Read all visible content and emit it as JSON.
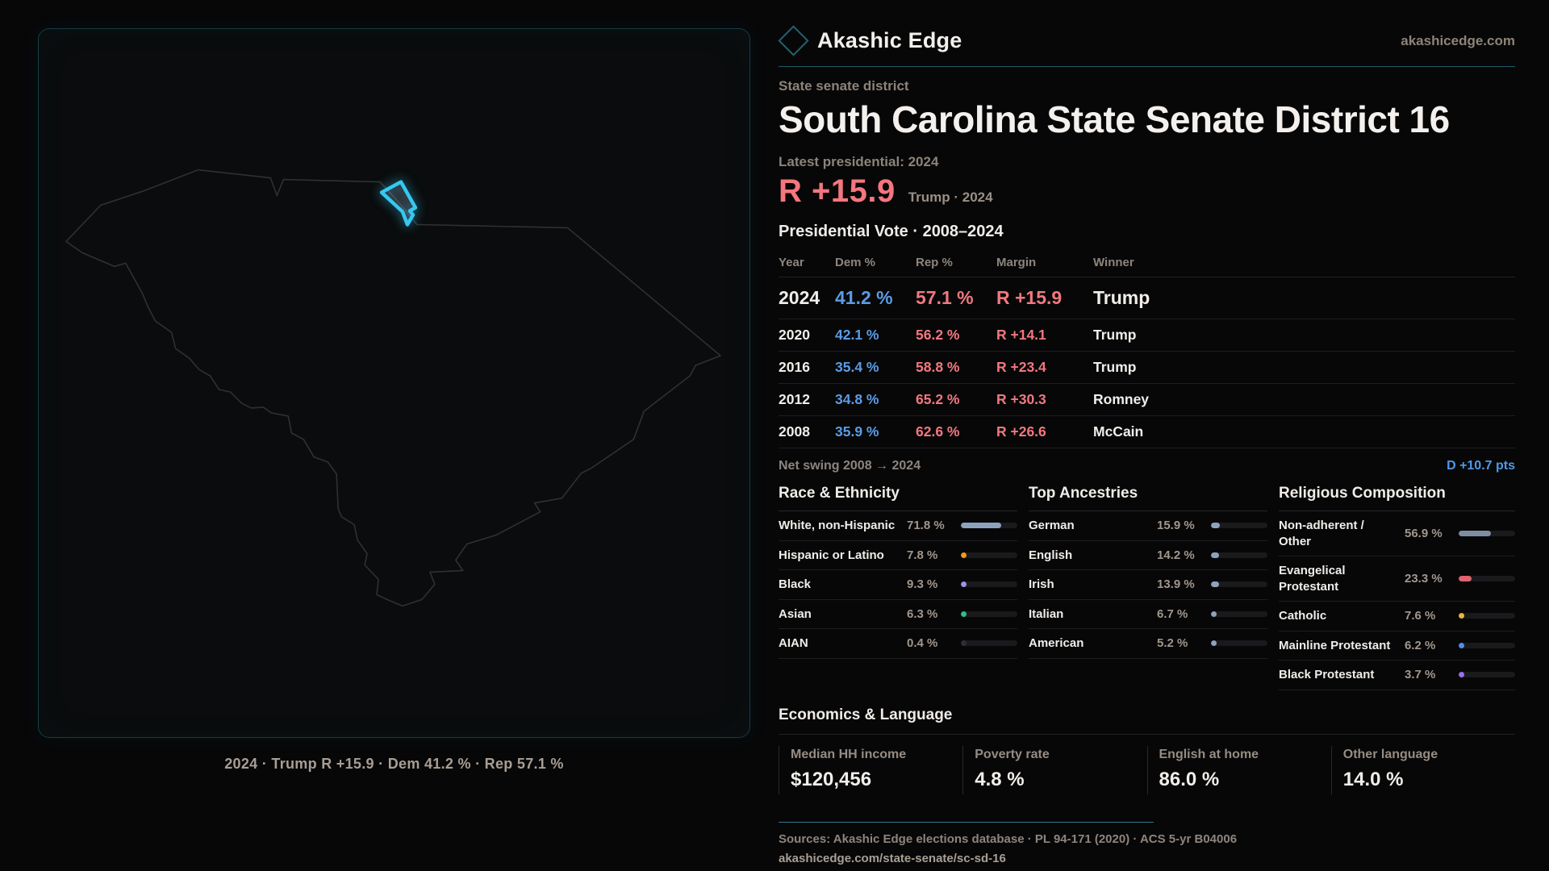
{
  "brand": {
    "name": "Akashic Edge",
    "site": "akashicedge.com"
  },
  "page": {
    "kicker": "State senate district",
    "title": "South Carolina State Senate District 16",
    "latest_label": "Latest presidential: 2024",
    "headline": {
      "margin": "R +15.9",
      "context": "Trump · 2024"
    }
  },
  "map": {
    "caption": "2024 · Trump  R +15.9 · Dem 41.2 % · Rep 57.1 %",
    "highlight_color": "#35c8f0"
  },
  "vote_table": {
    "title": "Presidential Vote · 2008–2024",
    "columns": [
      "Year",
      "Dem %",
      "Rep %",
      "Margin",
      "Winner"
    ],
    "rows": [
      {
        "year": "2024",
        "dem": "41.2 %",
        "rep": "57.1 %",
        "margin": "R +15.9",
        "winner": "Trump",
        "emphasis": true
      },
      {
        "year": "2020",
        "dem": "42.1 %",
        "rep": "56.2 %",
        "margin": "R +14.1",
        "winner": "Trump"
      },
      {
        "year": "2016",
        "dem": "35.4 %",
        "rep": "58.8 %",
        "margin": "R +23.4",
        "winner": "Trump"
      },
      {
        "year": "2012",
        "dem": "34.8 %",
        "rep": "65.2 %",
        "margin": "R +30.3",
        "winner": "Romney"
      },
      {
        "year": "2008",
        "dem": "35.9 %",
        "rep": "62.6 %",
        "margin": "R +26.6",
        "winner": "McCain"
      }
    ]
  },
  "net_swing": {
    "label": "Net swing 2008 → 2024",
    "value": "D +10.7 pts"
  },
  "demographics": [
    {
      "title": "Race & Ethnicity",
      "rows": [
        {
          "label": "White, non-Hispanic",
          "value": "71.8 %",
          "pct": 71.8,
          "color": "#8da3bd"
        },
        {
          "label": "Hispanic or Latino",
          "value": "7.8 %",
          "pct": 7.8,
          "color": "#f09c1e"
        },
        {
          "label": "Black",
          "value": "9.3 %",
          "pct": 9.3,
          "color": "#a78ef0"
        },
        {
          "label": "Asian",
          "value": "6.3 %",
          "pct": 6.3,
          "color": "#2dbf8a"
        },
        {
          "label": "AIAN",
          "value": "0.4 %",
          "pct": 0.4,
          "color": "#2e2e33"
        }
      ]
    },
    {
      "title": "Top Ancestries",
      "rows": [
        {
          "label": "German",
          "value": "15.9 %",
          "pct": 15.9,
          "color": "#8da3bd"
        },
        {
          "label": "English",
          "value": "14.2 %",
          "pct": 14.2,
          "color": "#8da3bd"
        },
        {
          "label": "Irish",
          "value": "13.9 %",
          "pct": 13.9,
          "color": "#8da3bd"
        },
        {
          "label": "Italian",
          "value": "6.7 %",
          "pct": 6.7,
          "color": "#8da3bd"
        },
        {
          "label": "American",
          "value": "5.2 %",
          "pct": 5.2,
          "color": "#8da3bd"
        }
      ]
    },
    {
      "title": "Religious Composition",
      "rows": [
        {
          "label": "Non-adherent / Other",
          "value": "56.9 %",
          "pct": 56.9,
          "color": "#7e8da1"
        },
        {
          "label": "Evangelical Protestant",
          "value": "23.3 %",
          "pct": 23.3,
          "color": "#e0636e"
        },
        {
          "label": "Catholic",
          "value": "7.6 %",
          "pct": 7.6,
          "color": "#e8b53d"
        },
        {
          "label": "Mainline Protestant",
          "value": "6.2 %",
          "pct": 6.2,
          "color": "#4f8fe8"
        },
        {
          "label": "Black Protestant",
          "value": "3.7 %",
          "pct": 3.7,
          "color": "#9b6ff0"
        }
      ]
    }
  ],
  "economics": {
    "title": "Economics & Language",
    "stats": [
      {
        "label": "Median HH income",
        "value": "$120,456"
      },
      {
        "label": "Poverty rate",
        "value": "4.8 %"
      },
      {
        "label": "English at home",
        "value": "86.0 %"
      },
      {
        "label": "Other language",
        "value": "14.0 %"
      }
    ]
  },
  "sources": {
    "line1": "Sources: Akashic Edge elections database · PL 94-171 (2020) · ACS 5-yr B04006",
    "line2": "akashicedge.com/state-senate/sc-sd-16"
  },
  "colors": {
    "dem_blue": "#5b9ce5",
    "rep_red": "#f2787f",
    "swing_blue": "#4f9ae8",
    "accent_teal": "#2a8ca0",
    "bar_slate": "#8da3bd",
    "district_cyan": "#35c8f0"
  }
}
